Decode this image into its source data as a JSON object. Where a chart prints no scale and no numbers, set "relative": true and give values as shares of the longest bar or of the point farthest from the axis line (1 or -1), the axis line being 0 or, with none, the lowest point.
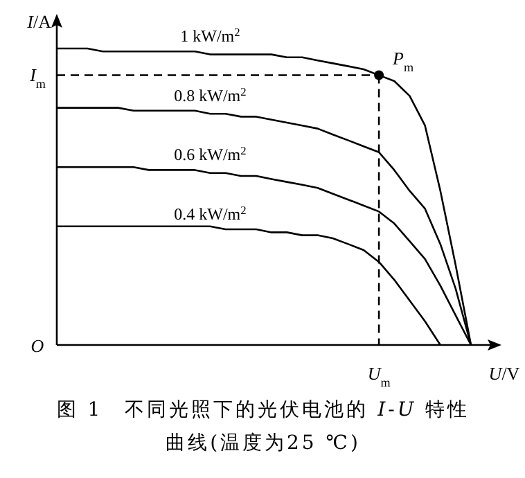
{
  "chart_data": {
    "type": "line",
    "relative": true,
    "title": "图 1　不同光照下的光伏电池的 *I*-*U* 特性曲线(温度为25 ℃)",
    "xlabel": "*U*/V",
    "ylabel": "*I*/A",
    "categories": [
      null,
      null,
      null,
      null,
      null,
      null,
      null,
      null,
      null,
      null,
      null,
      null,
      null,
      null,
      null,
      null,
      null,
      null,
      null,
      null,
      null,
      null,
      null,
      null,
      null,
      null,
      null,
      null
    ],
    "ref_lines": [
      {
        "axis": "y",
        "value": 0.91,
        "label": "*I*$_{m}$",
        "line_style": "dashed",
        "color": "#000000"
      }
    ],
    "annotations": [
      "*P*$_{m}$",
      "*U*$_{m}$",
      "*O*"
    ],
    "marker": "none",
    "line_style": "solid",
    "series": [
      {
        "name": "1 kW/m$^{2}$",
        "color": "#000000",
        "values": [
          1.0,
          1.0,
          1.0,
          0.99,
          0.99,
          0.99,
          0.99,
          0.99,
          0.99,
          0.99,
          0.98,
          0.98,
          0.98,
          0.98,
          0.98,
          0.97,
          0.97,
          0.96,
          0.95,
          0.94,
          0.93,
          0.91,
          0.89,
          0.84,
          0.74,
          0.52,
          0.27,
          0
        ]
      },
      {
        "name": "0.8 kW/m$^{2}$",
        "color": "#000000",
        "values": [
          0.8,
          0.8,
          0.8,
          0.8,
          0.8,
          0.79,
          0.79,
          0.79,
          0.79,
          0.79,
          0.78,
          0.78,
          0.77,
          0.77,
          0.76,
          0.75,
          0.74,
          0.73,
          0.71,
          0.69,
          0.67,
          0.65,
          0.59,
          0.52,
          0.46,
          0.34,
          0.19,
          0
        ]
      },
      {
        "name": "0.6 kW/m$^{2}$",
        "color": "#000000",
        "values": [
          0.6,
          0.6,
          0.6,
          0.6,
          0.6,
          0.6,
          0.59,
          0.59,
          0.59,
          0.59,
          0.58,
          0.58,
          0.57,
          0.57,
          0.56,
          0.55,
          0.54,
          0.53,
          0.51,
          0.49,
          0.47,
          0.45,
          0.41,
          0.35,
          0.29,
          0.2,
          0.1,
          0
        ]
      },
      {
        "name": "0.4 kW/m$^{2}$",
        "color": "#000000",
        "values": [
          0.4,
          0.4,
          0.4,
          0.4,
          0.4,
          0.4,
          0.4,
          0.4,
          0.4,
          0.4,
          0.4,
          0.39,
          0.39,
          0.39,
          0.38,
          0.38,
          0.37,
          0.37,
          0.36,
          0.34,
          0.32,
          0.28,
          0.22,
          0.15,
          0.08,
          0,
          null,
          null
        ]
      }
    ]
  }
}
